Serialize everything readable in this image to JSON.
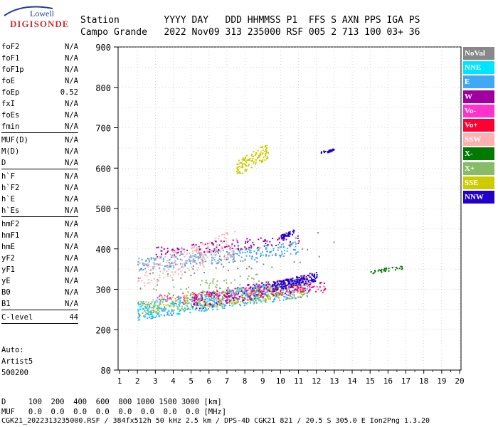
{
  "logo": {
    "top": "Lowell",
    "main": "DIGISONDE"
  },
  "header": {
    "line1": "Station        YYYY DAY   DDD HHMMSS P1  FFS S AXN PPS IGA PS",
    "line2": "Campo Grande   2022 Nov09 313 235000 RSF 005 2 713 100 03+ 36"
  },
  "params": {
    "group1": [
      {
        "name": "foF2",
        "value": "N/A"
      },
      {
        "name": "foF1",
        "value": "N/A"
      },
      {
        "name": "foF1p",
        "value": "N/A"
      },
      {
        "name": "foE",
        "value": "N/A"
      },
      {
        "name": "foEp",
        "value": "0.52"
      },
      {
        "name": "fxI",
        "value": "N/A"
      },
      {
        "name": "foEs",
        "value": "N/A"
      },
      {
        "name": "fmin",
        "value": "N/A"
      }
    ],
    "group2": [
      {
        "name": "MUF(D)",
        "value": "N/A"
      },
      {
        "name": "M(D)",
        "value": "N/A"
      },
      {
        "name": "D",
        "value": "N/A"
      }
    ],
    "group3": [
      {
        "name": "h`F",
        "value": "N/A"
      },
      {
        "name": "h`F2",
        "value": "N/A"
      },
      {
        "name": "h`E",
        "value": "N/A"
      },
      {
        "name": "h`Es",
        "value": "N/A"
      }
    ],
    "group4": [
      {
        "name": "hmF2",
        "value": "N/A"
      },
      {
        "name": "hmF1",
        "value": "N/A"
      },
      {
        "name": "hmE",
        "value": "N/A"
      },
      {
        "name": "yF2",
        "value": "N/A"
      },
      {
        "name": "yF1",
        "value": "N/A"
      },
      {
        "name": "yE",
        "value": "N/A"
      },
      {
        "name": "B0",
        "value": "N/A"
      },
      {
        "name": "B1",
        "value": "N/A"
      }
    ],
    "group5": [
      {
        "name": "C-level",
        "value": "44"
      }
    ]
  },
  "auto": {
    "line1": "Auto:",
    "line2": "Artist5",
    "line3": "500200"
  },
  "bottom": {
    "line1": "D     100  200  400  600  800 1000 1500 3000 [km]",
    "line2": "MUF   0.0  0.0  0.0  0.0  0.0  0.0  0.0  0.0 [MHz]"
  },
  "footer": "CGK21_2022313235000.RSF / 384fx512h 50 kHz 2.5 km / DPS-4D CGK21 821 / 20.5 S 305.0 E Ion2Png 1.3.20",
  "legend": [
    {
      "label": "NoVal",
      "color": "#888888"
    },
    {
      "label": "NNE",
      "color": "#00e5ff"
    },
    {
      "label": "E",
      "color": "#3fa9f5"
    },
    {
      "label": "W",
      "color": "#a000a0"
    },
    {
      "label": "Vo-",
      "color": "#ff33cc"
    },
    {
      "label": "Vo+",
      "color": "#ff0033"
    },
    {
      "label": "SSW",
      "color": "#ffb0b0"
    },
    {
      "label": "X-",
      "color": "#007a00"
    },
    {
      "label": "X+",
      "color": "#88bb66"
    },
    {
      "label": "SSE",
      "color": "#cccc00"
    },
    {
      "label": "NNW",
      "color": "#2200cc"
    }
  ],
  "chart_data": {
    "type": "scatter",
    "xlim": [
      1,
      20
    ],
    "ylim": [
      80,
      900
    ],
    "xticks": [
      1,
      2,
      3,
      4,
      5,
      6,
      7,
      8,
      9,
      10,
      11,
      12,
      13,
      14,
      15,
      16,
      17,
      18,
      19,
      20
    ],
    "yticks": [
      80,
      200,
      300,
      400,
      500,
      600,
      700,
      800,
      900
    ],
    "grid": true,
    "clusters": [
      {
        "series": "E",
        "xmin": 2.0,
        "xmax": 11.5,
        "ymin": 225,
        "ymax": 330,
        "n": 500
      },
      {
        "series": "E",
        "xmin": 2.0,
        "xmax": 11.0,
        "ymin": 345,
        "ymax": 420,
        "n": 250
      },
      {
        "series": "NNE",
        "xmin": 2.0,
        "xmax": 10.0,
        "ymin": 225,
        "ymax": 320,
        "n": 180
      },
      {
        "series": "W",
        "xmin": 5.0,
        "xmax": 11.8,
        "ymin": 250,
        "ymax": 340,
        "n": 250
      },
      {
        "series": "W",
        "xmin": 3.0,
        "xmax": 11.0,
        "ymin": 380,
        "ymax": 440,
        "n": 120
      },
      {
        "series": "SSE",
        "xmin": 2.0,
        "xmax": 11.5,
        "ymin": 240,
        "ymax": 320,
        "n": 250
      },
      {
        "series": "SSE",
        "xmin": 7.5,
        "xmax": 9.3,
        "ymin": 580,
        "ymax": 665,
        "n": 110
      },
      {
        "series": "SSW",
        "xmin": 2.0,
        "xmax": 7.5,
        "ymin": 300,
        "ymax": 450,
        "n": 220
      },
      {
        "series": "NNW",
        "xmin": 9.5,
        "xmax": 12.0,
        "ymin": 295,
        "ymax": 345,
        "n": 160
      },
      {
        "series": "NNW",
        "xmin": 10.0,
        "xmax": 10.8,
        "ymin": 425,
        "ymax": 450,
        "n": 40
      },
      {
        "series": "NNW",
        "xmin": 12.2,
        "xmax": 13.0,
        "ymin": 636,
        "ymax": 650,
        "n": 30
      },
      {
        "series": "Vo-",
        "xmin": 3.0,
        "xmax": 12.5,
        "ymin": 260,
        "ymax": 320,
        "n": 120
      },
      {
        "series": "Vo+",
        "xmin": 5.0,
        "xmax": 12.5,
        "ymin": 270,
        "ymax": 320,
        "n": 60
      },
      {
        "series": "X-",
        "xmin": 15.0,
        "xmax": 16.8,
        "ymin": 340,
        "ymax": 360,
        "n": 30
      },
      {
        "series": "X+",
        "xmin": 2.5,
        "xmax": 9.0,
        "ymin": 260,
        "ymax": 350,
        "n": 60
      },
      {
        "series": "NoVal",
        "xmin": 2.0,
        "xmax": 13.0,
        "ymin": 300,
        "ymax": 450,
        "n": 60
      }
    ]
  }
}
